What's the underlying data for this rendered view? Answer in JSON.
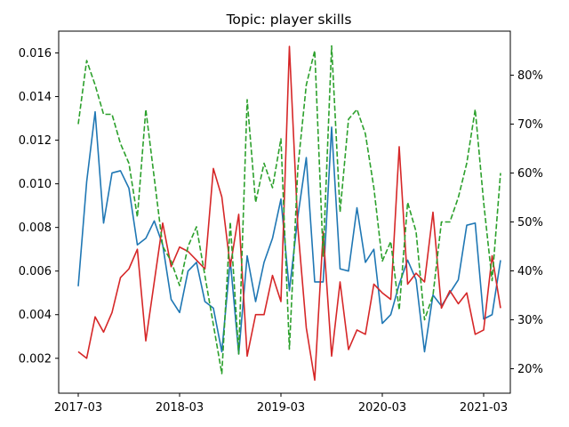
{
  "chart_data": {
    "type": "line",
    "title": "Topic: player skills",
    "x": [
      "2017-03",
      "2017-04",
      "2017-05",
      "2017-06",
      "2017-07",
      "2017-08",
      "2017-09",
      "2017-10",
      "2017-11",
      "2017-12",
      "2018-01",
      "2018-02",
      "2018-03",
      "2018-04",
      "2018-05",
      "2018-06",
      "2018-07",
      "2018-08",
      "2018-09",
      "2018-10",
      "2018-11",
      "2018-12",
      "2019-01",
      "2019-02",
      "2019-03",
      "2019-04",
      "2019-05",
      "2019-06",
      "2019-07",
      "2019-08",
      "2019-09",
      "2019-10",
      "2019-11",
      "2019-12",
      "2020-01",
      "2020-02",
      "2020-03",
      "2020-04",
      "2020-05",
      "2020-06",
      "2020-07",
      "2020-08",
      "2020-09",
      "2020-10",
      "2020-11",
      "2020-12",
      "2021-01",
      "2021-02",
      "2021-03",
      "2021-04",
      "2021-05"
    ],
    "x_ticks": [
      "2017-03",
      "2018-03",
      "2019-03",
      "2020-03",
      "2021-03"
    ],
    "y_left_ticks": [
      0.002,
      0.004,
      0.006,
      0.008,
      0.01,
      0.012,
      0.014,
      0.016
    ],
    "y_left_tick_labels": [
      "0.002",
      "0.004",
      "0.006",
      "0.008",
      "0.010",
      "0.012",
      "0.014",
      "0.016"
    ],
    "ylim_left": [
      0.0004,
      0.017
    ],
    "y_right_ticks": [
      0.2,
      0.3,
      0.4,
      0.5,
      0.6,
      0.7,
      0.8
    ],
    "y_right_tick_labels": [
      "20%",
      "30%",
      "40%",
      "50%",
      "60%",
      "70%",
      "80%"
    ],
    "ylim_right": [
      0.15,
      0.89
    ],
    "grid": false,
    "legend": "none",
    "series": [
      {
        "axis": "left",
        "color": "#1f77b4",
        "style": "solid",
        "values": [
          0.0053,
          0.0101,
          0.0133,
          0.0082,
          0.0105,
          0.0106,
          0.0098,
          0.0072,
          0.0075,
          0.0083,
          0.0072,
          0.0047,
          0.0041,
          0.006,
          0.0064,
          0.0046,
          0.0043,
          0.0023,
          0.0065,
          0.0022,
          0.0067,
          0.0046,
          0.0064,
          0.0075,
          0.0093,
          0.0051,
          0.0085,
          0.0112,
          0.0055,
          0.0055,
          0.0126,
          0.0061,
          0.006,
          0.0089,
          0.0064,
          0.007,
          0.0036,
          0.004,
          0.0054,
          0.0065,
          0.0056,
          0.0023,
          0.0049,
          0.0044,
          0.005,
          0.0056,
          0.0081,
          0.0082,
          0.0038,
          0.004,
          0.0065
        ]
      },
      {
        "axis": "left",
        "color": "#d62728",
        "style": "solid",
        "values": [
          0.0023,
          0.002,
          0.0039,
          0.0032,
          0.0041,
          0.0057,
          0.0061,
          0.007,
          0.0028,
          0.0055,
          0.0082,
          0.0062,
          0.0071,
          0.0069,
          0.0065,
          0.0061,
          0.0107,
          0.0094,
          0.0062,
          0.0086,
          0.0021,
          0.004,
          0.004,
          0.0058,
          0.0046,
          0.0163,
          0.008,
          0.0034,
          0.001,
          0.0078,
          0.0021,
          0.0055,
          0.0024,
          0.0033,
          0.0031,
          0.0054,
          0.005,
          0.0047,
          0.0117,
          0.0054,
          0.0059,
          0.0055,
          0.0087,
          0.0043,
          0.0051,
          0.0045,
          0.005,
          0.0031,
          0.0033,
          0.0067,
          0.0043
        ]
      },
      {
        "axis": "right",
        "color": "#2ca02c",
        "style": "dashed",
        "values": [
          0.7,
          0.83,
          0.78,
          0.72,
          0.72,
          0.66,
          0.62,
          0.51,
          0.73,
          0.59,
          0.45,
          0.42,
          0.37,
          0.45,
          0.49,
          0.39,
          0.29,
          0.19,
          0.5,
          0.23,
          0.75,
          0.54,
          0.62,
          0.57,
          0.67,
          0.24,
          0.61,
          0.78,
          0.85,
          0.43,
          0.86,
          0.52,
          0.71,
          0.73,
          0.68,
          0.57,
          0.42,
          0.46,
          0.32,
          0.54,
          0.48,
          0.3,
          0.35,
          0.5,
          0.5,
          0.55,
          0.62,
          0.73,
          0.54,
          0.38,
          0.6
        ]
      }
    ]
  }
}
